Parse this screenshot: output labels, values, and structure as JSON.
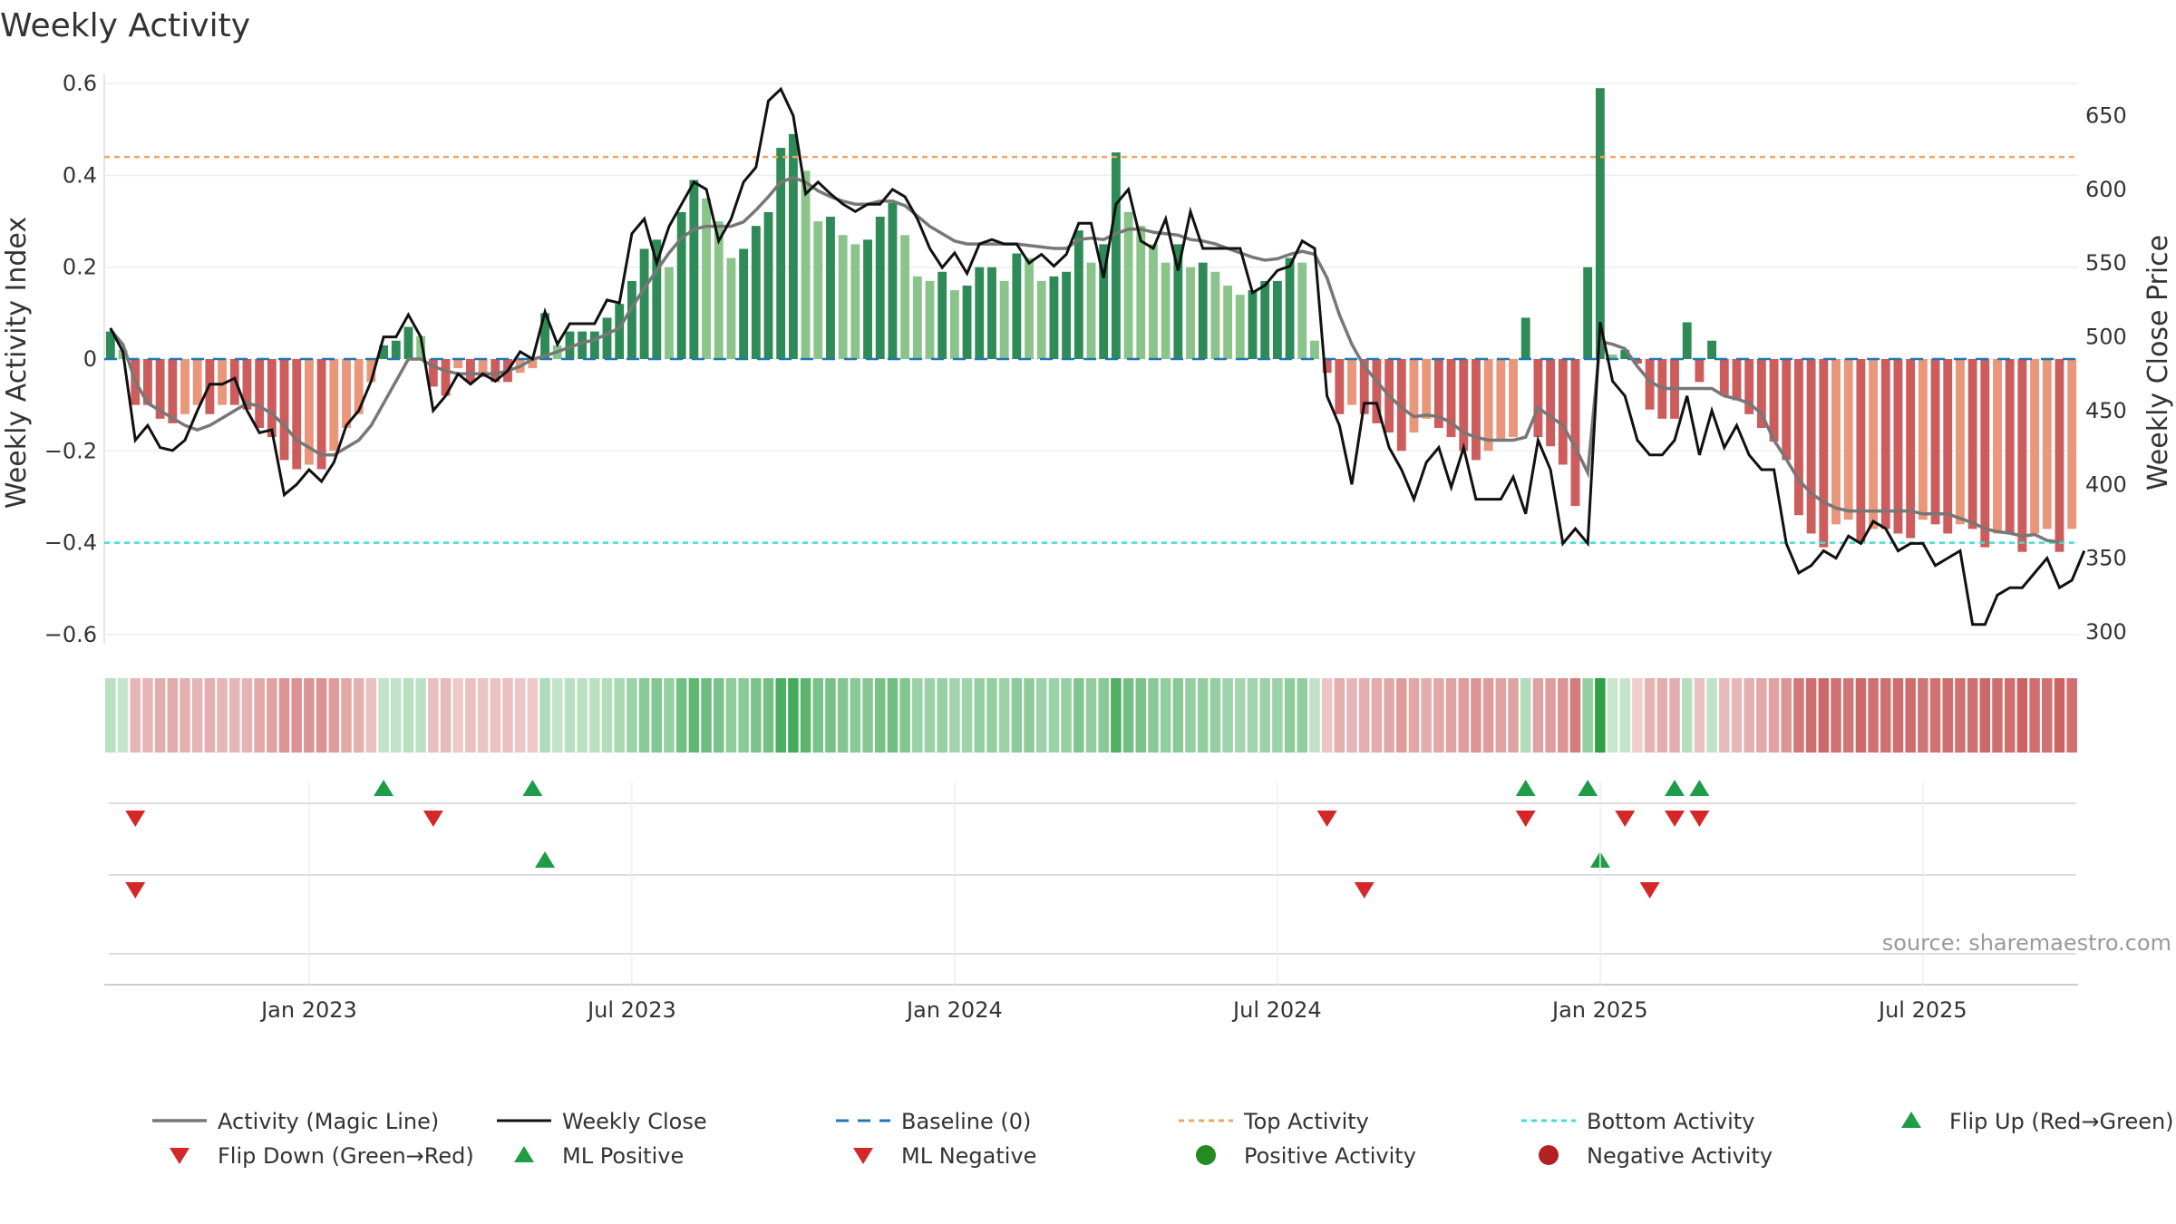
{
  "chart_data": {
    "type": "bar",
    "title": "Weekly Activity",
    "ylabel": "Weekly Activity Index",
    "y2label": "Weekly Close Price",
    "ylim": [
      -0.62,
      0.62
    ],
    "y2lim": [
      292,
      678
    ],
    "yticks": [
      "0.6",
      "0.4",
      "0.2",
      "0",
      "−0.2",
      "−0.4",
      "−0.6"
    ],
    "yticks_values": [
      0.6,
      0.4,
      0.2,
      0,
      -0.2,
      -0.4,
      -0.6
    ],
    "y2ticks": [
      "650",
      "600",
      "550",
      "500",
      "450",
      "400",
      "350",
      "300"
    ],
    "y2ticks_values": [
      650,
      600,
      550,
      500,
      450,
      400,
      350,
      300
    ],
    "xticks": [
      "Jan 2023",
      "Jul 2023",
      "Jan 2024",
      "Jul 2024",
      "Jan 2025",
      "Jul 2025"
    ],
    "xticks_week_index": [
      16,
      42,
      68,
      94,
      120,
      146
    ],
    "top_activity": 0.44,
    "bottom_activity": -0.4,
    "activity_bars": [
      0.06,
      0.02,
      -0.1,
      -0.1,
      -0.13,
      -0.14,
      -0.12,
      -0.1,
      -0.12,
      -0.1,
      -0.1,
      -0.11,
      -0.15,
      -0.17,
      -0.22,
      -0.24,
      -0.23,
      -0.24,
      -0.2,
      -0.15,
      -0.12,
      -0.05,
      0.03,
      0.04,
      0.07,
      0.05,
      -0.06,
      -0.08,
      -0.02,
      -0.05,
      -0.04,
      -0.05,
      -0.05,
      -0.03,
      -0.02,
      0.1,
      0.03,
      0.06,
      0.06,
      0.06,
      0.09,
      0.12,
      0.17,
      0.24,
      0.26,
      0.2,
      0.32,
      0.39,
      0.35,
      0.3,
      0.22,
      0.24,
      0.29,
      0.32,
      0.46,
      0.49,
      0.41,
      0.3,
      0.31,
      0.27,
      0.25,
      0.26,
      0.31,
      0.34,
      0.27,
      0.18,
      0.17,
      0.19,
      0.15,
      0.16,
      0.2,
      0.2,
      0.17,
      0.23,
      0.22,
      0.17,
      0.18,
      0.19,
      0.28,
      0.21,
      0.25,
      0.45,
      0.32,
      0.29,
      0.25,
      0.21,
      0.25,
      0.2,
      0.21,
      0.19,
      0.16,
      0.14,
      0.15,
      0.17,
      0.17,
      0.22,
      0.21,
      0.04,
      -0.03,
      -0.12,
      -0.1,
      -0.12,
      -0.14,
      -0.16,
      -0.2,
      -0.16,
      -0.13,
      -0.15,
      -0.17,
      -0.2,
      -0.22,
      -0.2,
      -0.18,
      -0.17,
      0.09,
      -0.17,
      -0.19,
      -0.23,
      -0.32,
      0.2,
      0.59,
      0.01,
      0.02,
      -0.01,
      -0.11,
      -0.13,
      -0.13,
      0.08,
      -0.05,
      0.04,
      -0.08,
      -0.09,
      -0.12,
      -0.15,
      -0.18,
      -0.22,
      -0.34,
      -0.38,
      -0.41,
      -0.36,
      -0.35,
      -0.4,
      -0.37,
      -0.37,
      -0.38,
      -0.39,
      -0.35,
      -0.36,
      -0.38,
      -0.36,
      -0.37,
      -0.41,
      -0.38,
      -0.38,
      -0.42,
      -0.38,
      -0.37,
      -0.42,
      -0.37
    ],
    "weekly_close": [
      506,
      490,
      430,
      440,
      425,
      423,
      430,
      450,
      468,
      468,
      472,
      450,
      435,
      437,
      393,
      400,
      410,
      402,
      415,
      440,
      450,
      470,
      500,
      500,
      515,
      500,
      450,
      460,
      475,
      468,
      475,
      470,
      477,
      490,
      485,
      517,
      495,
      509,
      509,
      509,
      525,
      523,
      570,
      580,
      550,
      575,
      590,
      605,
      600,
      565,
      580,
      605,
      615,
      660,
      668,
      650,
      597,
      605,
      597,
      590,
      585,
      590,
      590,
      600,
      595,
      580,
      560,
      547,
      557,
      543,
      563,
      566,
      563,
      563,
      550,
      556,
      548,
      556,
      577,
      577,
      540,
      590,
      600,
      565,
      560,
      580,
      545,
      585,
      560,
      560,
      560,
      560,
      530,
      535,
      545,
      548,
      565,
      560,
      460,
      440,
      400,
      455,
      455,
      425,
      410,
      390,
      415,
      425,
      398,
      425,
      390,
      390,
      390,
      405,
      380,
      430,
      410,
      360,
      370,
      360,
      510,
      470,
      460,
      430,
      420,
      420,
      430,
      460,
      420,
      450,
      425,
      440,
      420,
      410,
      410,
      360,
      340,
      345,
      355,
      350,
      365,
      360,
      375,
      370,
      355,
      360,
      360,
      345,
      350,
      355,
      305,
      305,
      325,
      330,
      330,
      340,
      350,
      330,
      335,
      355
    ],
    "magic_line": [
      505,
      495,
      470,
      455,
      450,
      445,
      440,
      437,
      440,
      445,
      450,
      455,
      453,
      448,
      440,
      430,
      425,
      420,
      420,
      425,
      430,
      440,
      455,
      470,
      485,
      485,
      480,
      477,
      475,
      475,
      475,
      475,
      477,
      480,
      485,
      487,
      490,
      493,
      496,
      498,
      502,
      506,
      520,
      533,
      545,
      557,
      567,
      573,
      575,
      575,
      575,
      578,
      586,
      595,
      605,
      608,
      605,
      599,
      595,
      592,
      590,
      590,
      592,
      592,
      589,
      582,
      575,
      570,
      565,
      563,
      563,
      563,
      563,
      563,
      562,
      561,
      560,
      560,
      566,
      567,
      566,
      570,
      573,
      573,
      571,
      570,
      569,
      566,
      565,
      563,
      560,
      557,
      554,
      552,
      553,
      556,
      558,
      556,
      540,
      515,
      495,
      480,
      470,
      460,
      452,
      446,
      447,
      446,
      442,
      435,
      432,
      430,
      430,
      430,
      432,
      452,
      446,
      440,
      425,
      408,
      497,
      495,
      492,
      480,
      470,
      465,
      465,
      465,
      465,
      465,
      460,
      458,
      455,
      448,
      430,
      417,
      403,
      394,
      388,
      384,
      382,
      382,
      382,
      382,
      382,
      382,
      380,
      380,
      380,
      377,
      374,
      370,
      368,
      367,
      365,
      366,
      362,
      361
    ],
    "bottom_strip_weeks": 165,
    "flip_up_row1": [
      22,
      34,
      114,
      119,
      126,
      128
    ],
    "flip_down_row1": [
      2,
      26,
      98,
      114,
      122,
      126,
      128
    ],
    "ml_positive_row2": [
      35,
      120
    ],
    "ml_negative_row2": [
      2,
      101,
      124
    ],
    "source": "source: sharemaestro.com",
    "colors": {
      "bar_pos_dark": "#2e8b57",
      "bar_pos_light": "#8bc48b",
      "bar_neg_dark": "#cd5c5c",
      "bar_neg_light": "#e9967a",
      "close": "#111111",
      "magic": "#777777",
      "baseline": "#1f77b4",
      "top": "#f4a460",
      "bottom": "#40e0d0",
      "marker_up": "#1e9c47",
      "marker_down": "#d62728",
      "pos_dot": "#228b22",
      "neg_dot": "#b22222"
    },
    "legend": [
      {
        "label": "Activity (Magic Line)",
        "kind": "line-magic"
      },
      {
        "label": "Weekly Close",
        "kind": "line-close"
      },
      {
        "label": "Baseline (0)",
        "kind": "line-baseline"
      },
      {
        "label": "Top Activity",
        "kind": "line-top"
      },
      {
        "label": "Bottom Activity",
        "kind": "line-bottom"
      },
      {
        "label": "Flip Up (Red→Green)",
        "kind": "tri-up"
      },
      {
        "label": "Flip Down (Green→Red)",
        "kind": "tri-down"
      },
      {
        "label": "ML Positive",
        "kind": "tri-up"
      },
      {
        "label": "ML Negative",
        "kind": "tri-down"
      },
      {
        "label": "Positive Activity",
        "kind": "dot-pos"
      },
      {
        "label": "Negative Activity",
        "kind": "dot-neg"
      }
    ]
  }
}
